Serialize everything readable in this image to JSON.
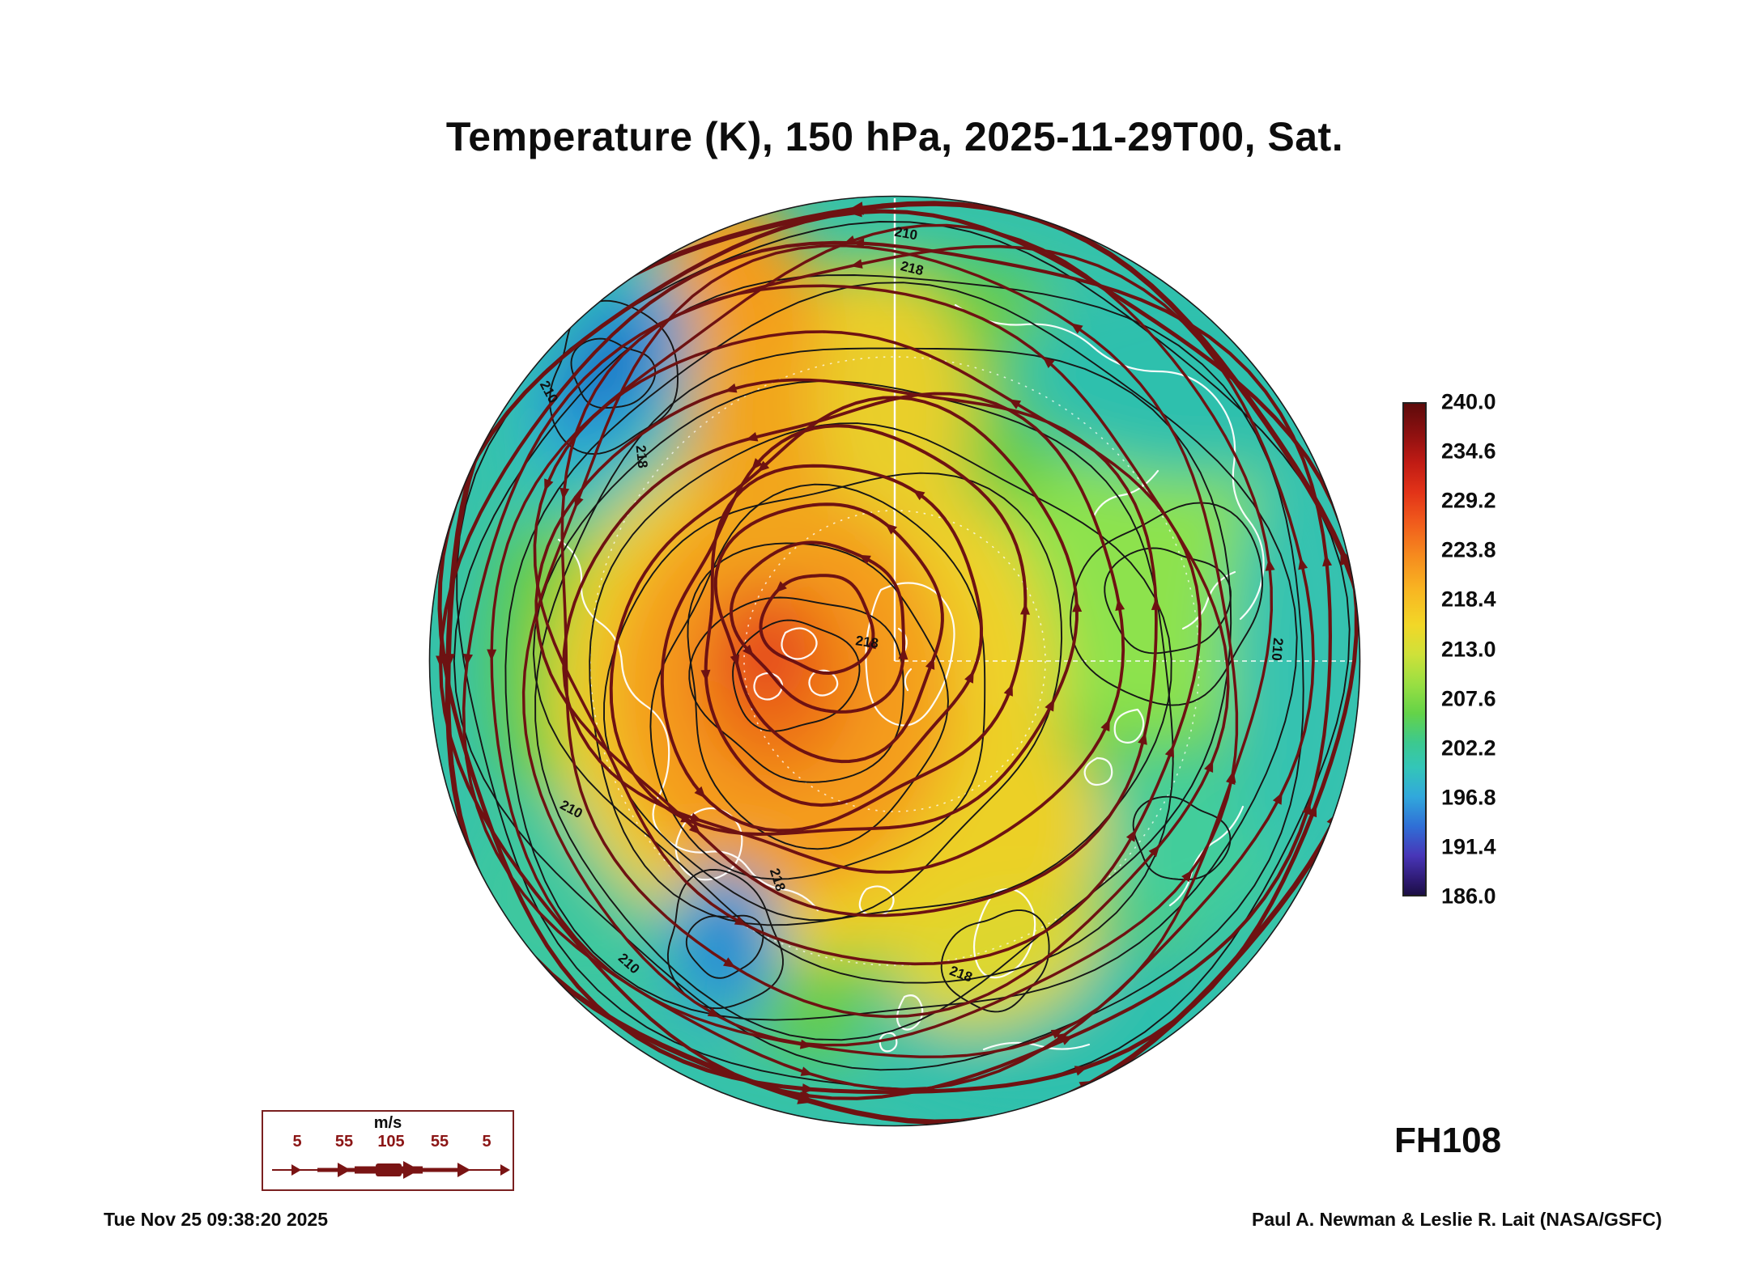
{
  "title": "Temperature (K), 150 hPa, 2025-11-29T00, Sat.",
  "forecast_hour_label": "FH108",
  "generated_timestamp": "Tue Nov 25 09:38:20 2025",
  "credit": "Paul A. Newman & Leslie R. Lait (NASA/GSFC)",
  "colorbar": {
    "ticks": [
      "240.0",
      "234.6",
      "229.2",
      "223.8",
      "218.4",
      "213.0",
      "207.6",
      "202.2",
      "196.8",
      "191.4",
      "186.0"
    ]
  },
  "wind_legend": {
    "units_label": "m/s",
    "speed_ticks": [
      "5",
      "55",
      "105",
      "55",
      "5"
    ]
  },
  "map_labels": {
    "contour_labels": [
      "210",
      "218",
      "210",
      "218",
      "218",
      "210",
      "218",
      "210",
      "210",
      "218"
    ]
  },
  "chart_data": {
    "type": "heatmap",
    "title": "Temperature (K), 150 hPa, 2025-11-29T00, Sat.",
    "variable": "Temperature",
    "units": "K",
    "pressure_level_hPa": 150,
    "valid_time": "2025-11-29T00",
    "valid_day_of_week": "Sat",
    "forecast_hour": 108,
    "projection": "Northern Hemisphere polar view (pole at disc center)",
    "colorbar": {
      "min": 186.0,
      "max": 240.0,
      "tick_interval": 5.4,
      "ticks": [
        240.0,
        234.6,
        229.2,
        223.8,
        218.4,
        213.0,
        207.6,
        202.2,
        196.8,
        191.4,
        186.0
      ],
      "orientation": "vertical",
      "position": "right of map",
      "palette_top_to_bottom": [
        "dark red",
        "red",
        "orange",
        "yellow",
        "yellow-green",
        "green",
        "teal",
        "cyan",
        "blue",
        "purple",
        "dark navy"
      ]
    },
    "overlays": [
      {
        "name": "temperature contours",
        "color": "black",
        "labeled_values_K": [
          210,
          218
        ]
      },
      {
        "name": "wind streamlines",
        "color": "dark maroon",
        "thickness_encodes": "wind speed",
        "legend_ticks_ms": [
          5,
          55,
          105,
          55,
          5
        ],
        "flow_direction": "counterclockwise around pole (westerly)"
      },
      {
        "name": "coastlines",
        "color": "white"
      },
      {
        "name": "graticule",
        "color": "white dotted circles, solid meridian line from pole to top"
      }
    ],
    "notable_features_approx": [
      {
        "location": "center-left of pole",
        "approx_temperature_K": "226-232",
        "appearance": "warm orange core with small red-orange maximum"
      },
      {
        "location": "warm tongue extending to top of disc",
        "approx_temperature_K": "222-228",
        "appearance": "orange ridge"
      },
      {
        "location": "upper-left sector",
        "approx_temperature_K": "196-204",
        "appearance": "cold blue pool"
      },
      {
        "location": "lower-center-left",
        "approx_temperature_K": "198-206",
        "appearance": "cold blue pool"
      },
      {
        "location": "right half (Eurasian sector)",
        "approx_temperature_K": "208-214",
        "appearance": "green with lighter green cell"
      },
      {
        "location": "outer rim (lower latitudes)",
        "approx_temperature_K": "204-210",
        "appearance": "teal/cyan ring with strong jet streamlines"
      }
    ]
  }
}
